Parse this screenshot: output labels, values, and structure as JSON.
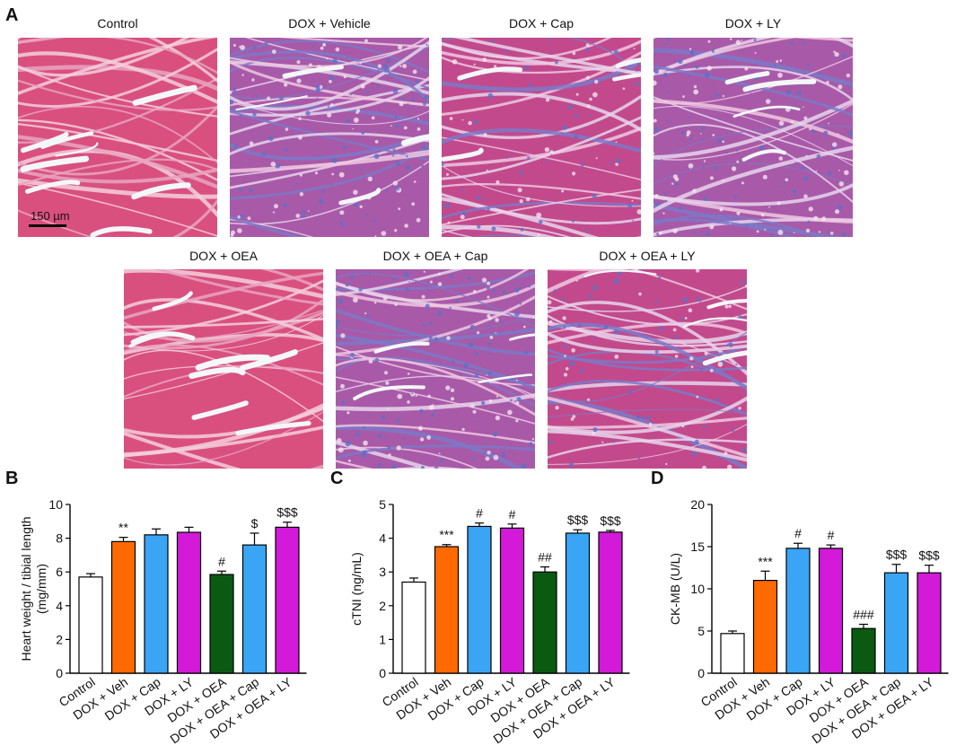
{
  "panel_labels": {
    "a": "A",
    "b": "B",
    "c": "C",
    "d": "D"
  },
  "histology": {
    "scale_bar_label": "150 µm",
    "images": [
      {
        "title": "Control",
        "stain": "control"
      },
      {
        "title": "DOX + Vehicle",
        "stain": "fibrotic"
      },
      {
        "title": "DOX + Cap",
        "stain": "mixed"
      },
      {
        "title": "DOX + LY",
        "stain": "fibrotic"
      },
      {
        "title": "DOX + OEA",
        "stain": "control"
      },
      {
        "title": "DOX + OEA + Cap",
        "stain": "fibrotic"
      },
      {
        "title": "DOX + OEA + LY",
        "stain": "mixed"
      }
    ]
  },
  "colors": {
    "Control": "#ffffff",
    "DOX + Veh": "#ff6a00",
    "DOX + Cap": "#3aa5f5",
    "DOX + LY": "#d21ad8",
    "DOX + OEA": "#0b5a12",
    "DOX + OEA + Cap": "#3aa5f5",
    "DOX + OEA + LY": "#d21ad8"
  },
  "chart_data": [
    {
      "type": "bar",
      "ylabel": "Heart weight / tibial length (mg/mm)",
      "ylim": [
        0,
        10
      ],
      "yticks": [
        "0",
        "2",
        "4",
        "6",
        "8",
        "10"
      ],
      "categories": [
        "Control",
        "DOX + Veh",
        "DOX + Cap",
        "DOX + LY",
        "DOX + OEA",
        "DOX + OEA + Cap",
        "DOX + OEA + LY"
      ],
      "values": [
        5.7,
        7.8,
        8.2,
        8.35,
        5.85,
        7.6,
        8.65
      ],
      "errors": [
        0.2,
        0.25,
        0.35,
        0.3,
        0.2,
        0.7,
        0.3
      ],
      "annotations": [
        "",
        "**",
        "",
        "",
        "#",
        "$",
        "$$$"
      ]
    },
    {
      "type": "bar",
      "ylabel": "cTNI (ng/mL)",
      "ylim": [
        0,
        5
      ],
      "yticks": [
        "0",
        "1",
        "2",
        "3",
        "4",
        "5"
      ],
      "categories": [
        "Control",
        "DOX + Veh",
        "DOX + Cap",
        "DOX + LY",
        "DOX + OEA",
        "DOX + OEA + Cap",
        "DOX + OEA + LY"
      ],
      "values": [
        2.7,
        3.75,
        4.35,
        4.3,
        3.0,
        4.15,
        4.18
      ],
      "errors": [
        0.12,
        0.06,
        0.1,
        0.12,
        0.15,
        0.1,
        0.05
      ],
      "annotations": [
        "",
        "***",
        "#",
        "#",
        "##",
        "$$$",
        "$$$"
      ]
    },
    {
      "type": "bar",
      "ylabel": "CK-MB (U/L)",
      "ylim": [
        0,
        20
      ],
      "yticks": [
        "0",
        "5",
        "10",
        "15",
        "20"
      ],
      "categories": [
        "Control",
        "DOX + Veh",
        "DOX + Cap",
        "DOX + LY",
        "DOX + OEA",
        "DOX + OEA + Cap",
        "DOX + OEA + LY"
      ],
      "values": [
        4.7,
        11.0,
        14.8,
        14.8,
        5.3,
        11.9,
        11.9
      ],
      "errors": [
        0.3,
        1.1,
        0.6,
        0.4,
        0.5,
        1.0,
        0.9
      ],
      "annotations": [
        "",
        "***",
        "#",
        "#",
        "###",
        "$$$",
        "$$$"
      ]
    }
  ]
}
